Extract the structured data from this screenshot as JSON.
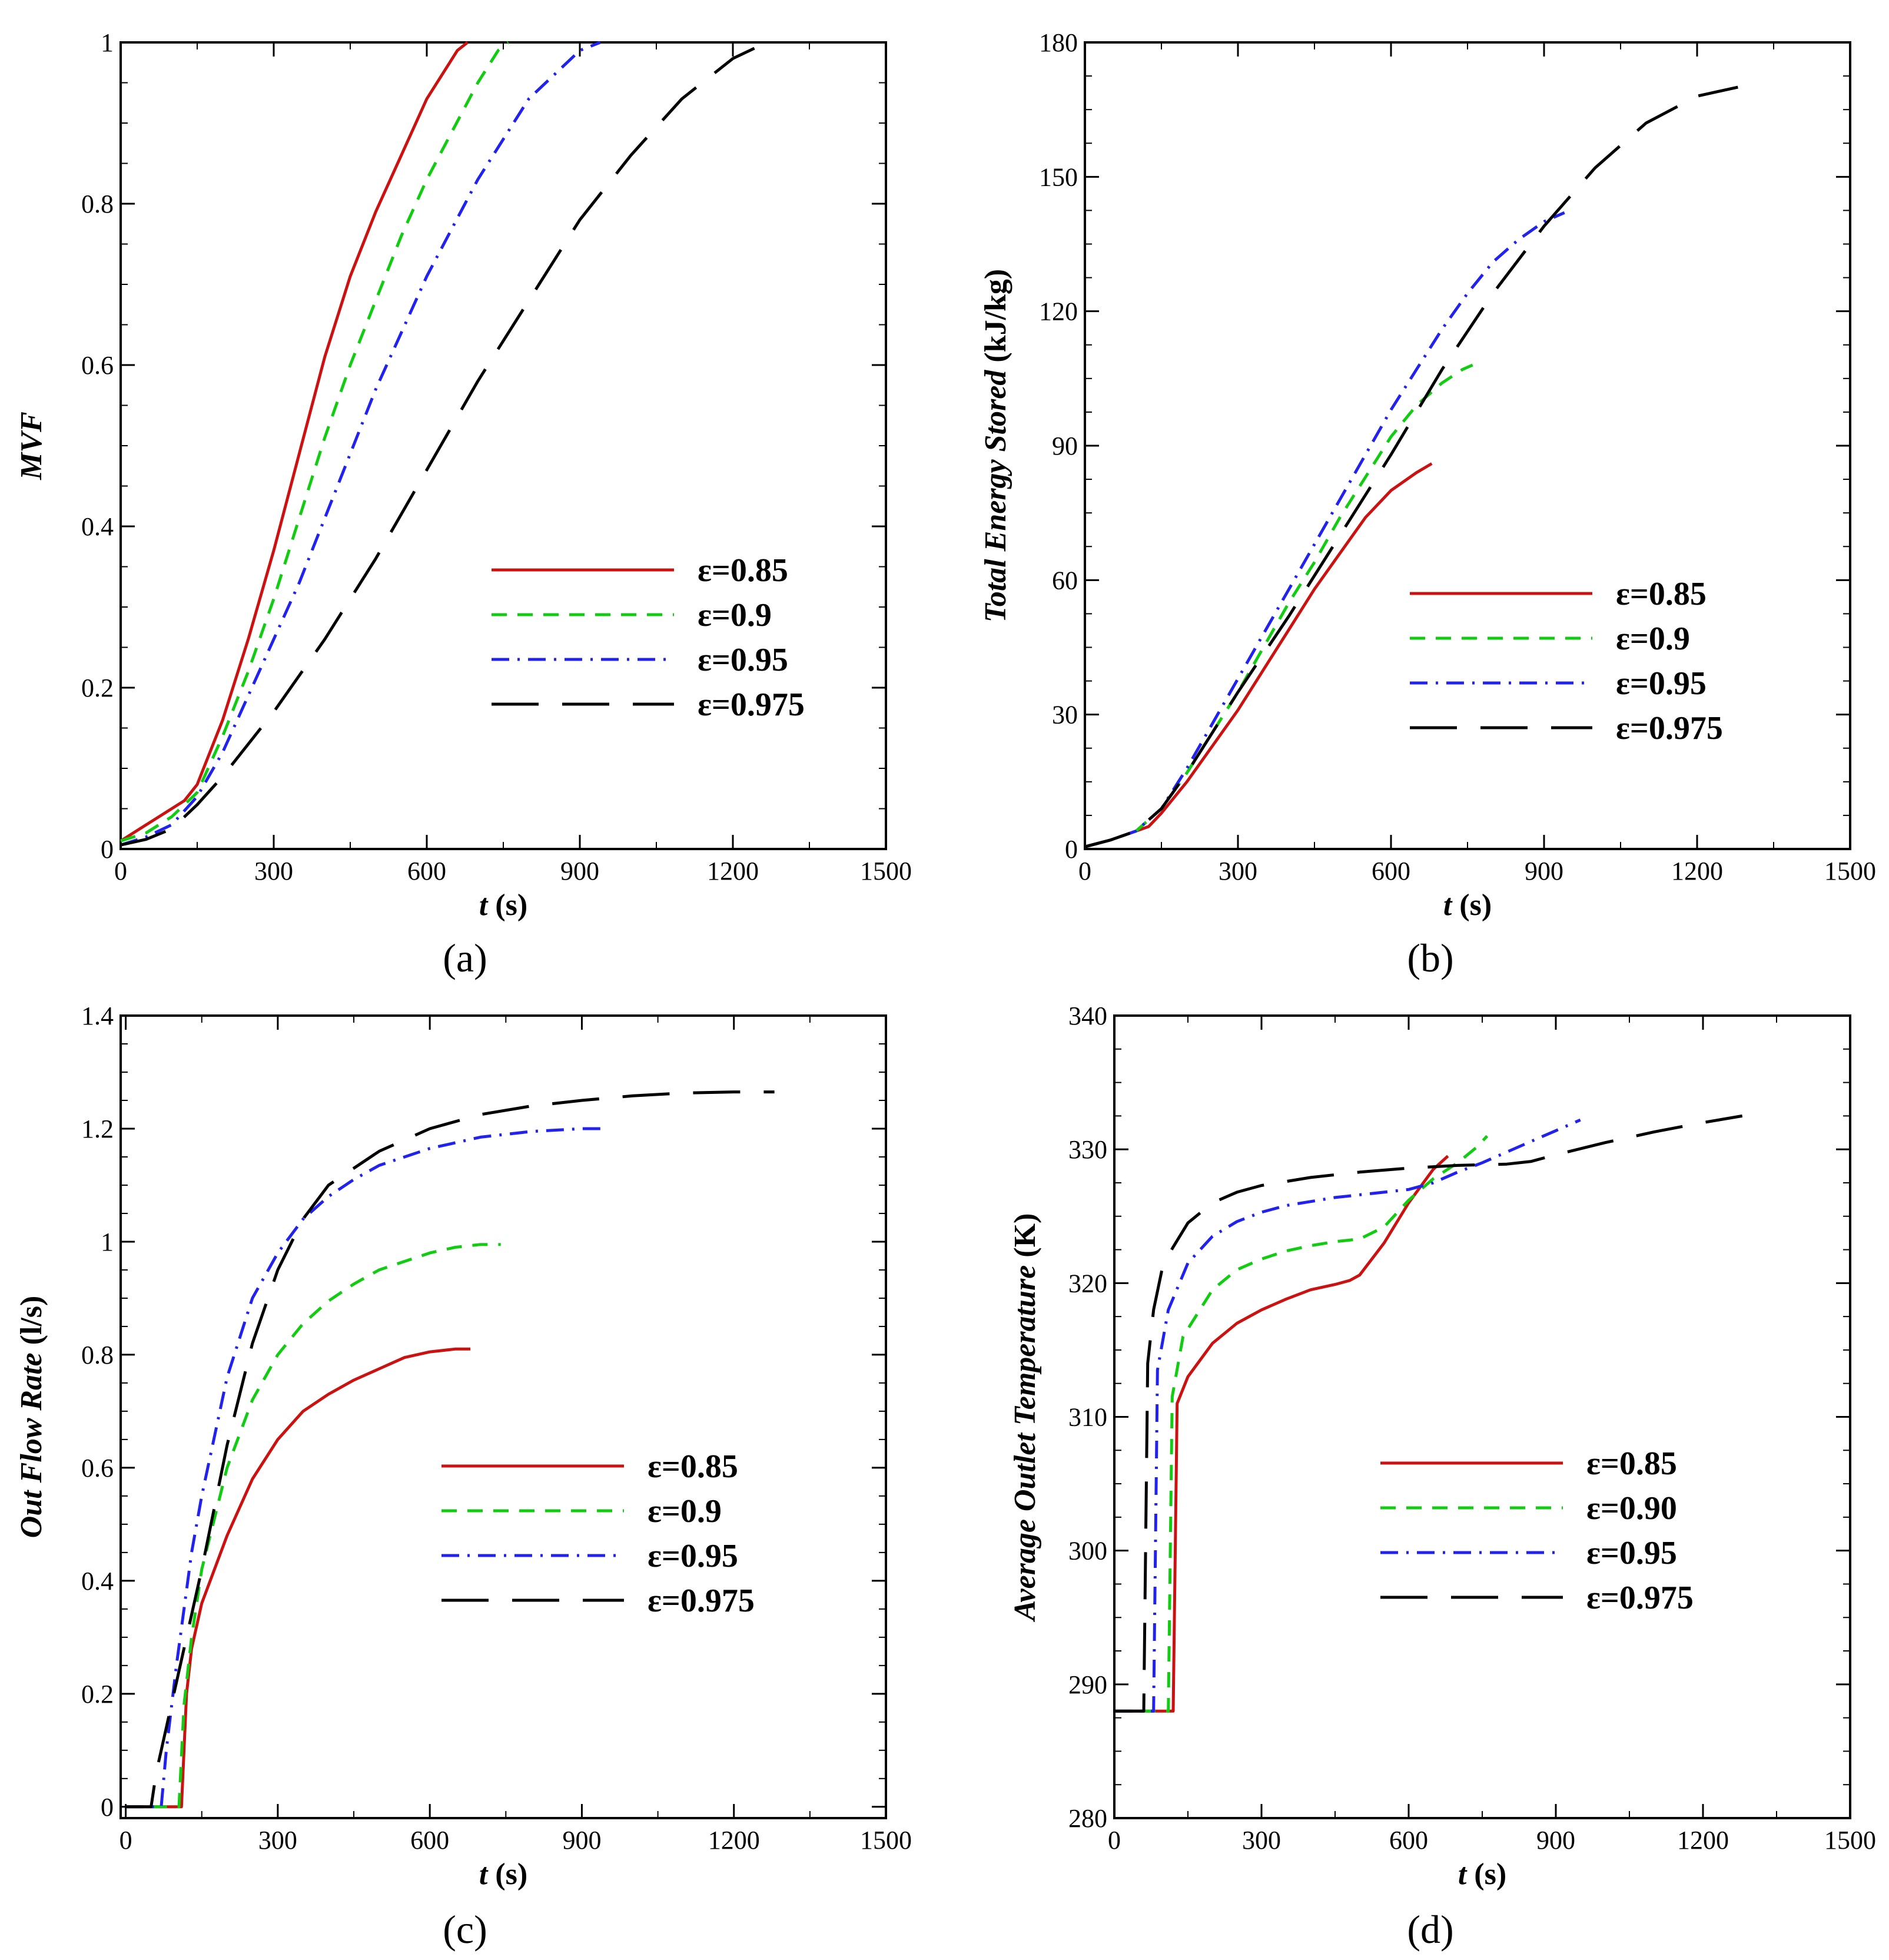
{
  "colors": {
    "red": "#cc1111",
    "green": "#11cc11",
    "blue": "#2222ee",
    "black": "#000000"
  },
  "chart_data": [
    {
      "type": "line",
      "caption": "(a)",
      "xlabel_var": "t",
      "xlabel_unit": " (s)",
      "ylabel": "MVF",
      "ylabel_unit": "",
      "xlim": [
        0,
        1500
      ],
      "ylim": [
        0,
        1
      ],
      "xticks": [
        0,
        300,
        600,
        900,
        1200,
        1500
      ],
      "yticks": [
        0,
        0.2,
        0.4,
        0.6,
        0.8,
        1
      ],
      "ytick_labels": [
        "0",
        "0.2",
        "0.4",
        "0.6",
        "0.8",
        "1"
      ],
      "legend_position": "lower-right",
      "series": [
        {
          "name": "ε=0.85",
          "style": "solid",
          "color": "#cc1111",
          "x": [
            0,
            50,
            100,
            125,
            150,
            200,
            250,
            300,
            350,
            400,
            420,
            450,
            500,
            550,
            600,
            640,
            660,
            680
          ],
          "y": [
            0.01,
            0.03,
            0.05,
            0.06,
            0.08,
            0.16,
            0.26,
            0.37,
            0.49,
            0.61,
            0.65,
            0.71,
            0.79,
            0.86,
            0.93,
            0.97,
            0.99,
            1.0
          ]
        },
        {
          "name": "ε=0.9",
          "style": "dashed",
          "color": "#11cc11",
          "x": [
            0,
            50,
            100,
            125,
            150,
            200,
            250,
            300,
            350,
            400,
            450,
            500,
            550,
            600,
            650,
            700,
            740,
            760
          ],
          "y": [
            0.01,
            0.02,
            0.04,
            0.055,
            0.07,
            0.14,
            0.22,
            0.31,
            0.41,
            0.51,
            0.6,
            0.68,
            0.76,
            0.83,
            0.89,
            0.95,
            0.99,
            1.0
          ]
        },
        {
          "name": "ε=0.95",
          "style": "dashdot",
          "color": "#2222ee",
          "x": [
            0,
            50,
            100,
            150,
            200,
            250,
            300,
            350,
            400,
            450,
            500,
            550,
            600,
            650,
            700,
            750,
            800,
            850,
            900,
            940
          ],
          "y": [
            0.005,
            0.015,
            0.03,
            0.065,
            0.12,
            0.19,
            0.26,
            0.33,
            0.41,
            0.49,
            0.57,
            0.64,
            0.71,
            0.77,
            0.83,
            0.88,
            0.93,
            0.96,
            0.99,
            1.0
          ]
        },
        {
          "name": "ε=0.975",
          "style": "longdash",
          "color": "#000000",
          "x": [
            0,
            50,
            100,
            150,
            200,
            300,
            400,
            500,
            600,
            700,
            800,
            900,
            1000,
            1100,
            1200,
            1250,
            1280
          ],
          "y": [
            0.005,
            0.012,
            0.025,
            0.055,
            0.09,
            0.17,
            0.26,
            0.36,
            0.47,
            0.58,
            0.68,
            0.78,
            0.86,
            0.93,
            0.98,
            0.995,
            1.0
          ]
        }
      ]
    },
    {
      "type": "line",
      "caption": "(b)",
      "xlabel_var": "t",
      "xlabel_unit": " (s)",
      "ylabel": "Total Energy Stored",
      "ylabel_unit": " (kJ/kg)",
      "xlim": [
        0,
        1500
      ],
      "ylim": [
        0,
        180
      ],
      "xticks": [
        0,
        300,
        600,
        900,
        1200,
        1500
      ],
      "yticks": [
        0,
        30,
        60,
        90,
        120,
        150,
        180
      ],
      "ytick_labels": [
        "0",
        "30",
        "60",
        "90",
        "120",
        "150",
        "180"
      ],
      "legend_position": "lower-right",
      "series": [
        {
          "name": "ε=0.85",
          "style": "solid",
          "color": "#cc1111",
          "x": [
            0,
            50,
            100,
            125,
            150,
            200,
            250,
            300,
            350,
            400,
            450,
            500,
            550,
            600,
            650,
            680
          ],
          "y": [
            0.5,
            2,
            4,
            5,
            8,
            15,
            23,
            31,
            40,
            49,
            58,
            66,
            74,
            80,
            84,
            86
          ]
        },
        {
          "name": "ε=0.9",
          "style": "dashed",
          "color": "#11cc11",
          "x": [
            0,
            50,
            100,
            150,
            200,
            250,
            300,
            350,
            400,
            450,
            500,
            550,
            600,
            650,
            700,
            740,
            760
          ],
          "y": [
            0.5,
            2,
            4,
            9,
            17,
            26,
            35,
            45,
            55,
            64,
            74,
            83,
            92,
            99,
            104,
            107,
            108
          ]
        },
        {
          "name": "ε=0.95",
          "style": "dashdot",
          "color": "#2222ee",
          "x": [
            0,
            50,
            100,
            150,
            200,
            250,
            300,
            350,
            400,
            450,
            500,
            550,
            600,
            650,
            700,
            750,
            800,
            850,
            900,
            940
          ],
          "y": [
            0.5,
            2,
            4,
            9,
            18,
            28,
            38,
            48,
            58,
            68,
            78,
            88,
            98,
            107,
            116,
            124,
            131,
            136,
            140,
            142
          ]
        },
        {
          "name": "ε=0.975",
          "style": "longdash",
          "color": "#000000",
          "x": [
            0,
            50,
            100,
            150,
            200,
            250,
            300,
            400,
            500,
            600,
            700,
            800,
            900,
            1000,
            1100,
            1200,
            1280
          ],
          "y": [
            0.5,
            2,
            4,
            9,
            17,
            26,
            35,
            52,
            70,
            88,
            107,
            124,
            139,
            152,
            162,
            168,
            170
          ]
        }
      ]
    },
    {
      "type": "line",
      "caption": "(c)",
      "xlabel_var": "t",
      "xlabel_unit": " (s)",
      "ylabel": "Out Flow Rate",
      "ylabel_unit": " (l/s)",
      "xlim": [
        -10,
        1500
      ],
      "ylim": [
        -0.02,
        1.4
      ],
      "xticks": [
        0,
        300,
        600,
        900,
        1200,
        1500
      ],
      "yticks": [
        0,
        0.2,
        0.4,
        0.6,
        0.8,
        1,
        1.2,
        1.4
      ],
      "ytick_labels": [
        "0",
        "0.2",
        "0.4",
        "0.6",
        "0.8",
        "1",
        "1.2",
        "1.4"
      ],
      "legend_position": "lower-right",
      "series": [
        {
          "name": "ε=0.85",
          "style": "solid",
          "color": "#cc1111",
          "x": [
            0,
            110,
            120,
            130,
            150,
            200,
            250,
            300,
            350,
            400,
            450,
            500,
            550,
            600,
            650,
            680
          ],
          "y": [
            0,
            0,
            0.2,
            0.28,
            0.36,
            0.48,
            0.58,
            0.65,
            0.7,
            0.73,
            0.755,
            0.775,
            0.795,
            0.805,
            0.81,
            0.81
          ]
        },
        {
          "name": "ε=0.9",
          "style": "dashed",
          "color": "#11cc11",
          "x": [
            0,
            105,
            115,
            130,
            150,
            200,
            250,
            300,
            350,
            400,
            450,
            500,
            550,
            600,
            650,
            700,
            740
          ],
          "y": [
            0,
            0,
            0.18,
            0.3,
            0.42,
            0.6,
            0.72,
            0.8,
            0.855,
            0.895,
            0.925,
            0.95,
            0.965,
            0.98,
            0.99,
            0.995,
            0.995
          ]
        },
        {
          "name": "ε=0.95",
          "style": "dashdot",
          "color": "#2222ee",
          "x": [
            0,
            70,
            80,
            100,
            130,
            150,
            200,
            250,
            300,
            350,
            400,
            450,
            500,
            600,
            700,
            800,
            900,
            950
          ],
          "y": [
            0,
            0,
            0.1,
            0.25,
            0.45,
            0.55,
            0.76,
            0.9,
            0.98,
            1.04,
            1.08,
            1.11,
            1.135,
            1.165,
            1.185,
            1.195,
            1.2,
            1.2
          ]
        },
        {
          "name": "ε=0.975",
          "style": "longdash",
          "color": "#000000",
          "x": [
            0,
            50,
            60,
            100,
            150,
            200,
            250,
            300,
            350,
            400,
            500,
            600,
            700,
            800,
            900,
            1000,
            1100,
            1200,
            1280
          ],
          "y": [
            0,
            0,
            0.06,
            0.22,
            0.42,
            0.64,
            0.82,
            0.95,
            1.04,
            1.1,
            1.16,
            1.2,
            1.225,
            1.24,
            1.25,
            1.258,
            1.263,
            1.265,
            1.265
          ]
        }
      ]
    },
    {
      "type": "line",
      "caption": "(d)",
      "xlabel_var": "t",
      "xlabel_unit": " (s)",
      "ylabel": "Average Outlet Temperature",
      "ylabel_unit": " (K)",
      "xlim": [
        0,
        1500
      ],
      "ylim": [
        280,
        340
      ],
      "xticks": [
        0,
        300,
        600,
        900,
        1200,
        1500
      ],
      "yticks": [
        280,
        290,
        300,
        310,
        320,
        330,
        340
      ],
      "ytick_labels": [
        "280",
        "290",
        "300",
        "310",
        "320",
        "330",
        "340"
      ],
      "legend_position": "lower-right",
      "series": [
        {
          "name": "ε=0.85",
          "style": "solid",
          "color": "#cc1111",
          "x": [
            0,
            120,
            128,
            150,
            200,
            250,
            300,
            350,
            400,
            450,
            480,
            500,
            550,
            600,
            650,
            680
          ],
          "y": [
            288,
            288,
            311,
            313,
            315.5,
            317,
            318,
            318.8,
            319.5,
            319.9,
            320.2,
            320.6,
            323,
            326,
            328.5,
            329.5
          ]
        },
        {
          "name": "ε=0.90",
          "style": "dashed",
          "color": "#11cc11",
          "x": [
            0,
            110,
            118,
            140,
            200,
            250,
            300,
            350,
            400,
            450,
            500,
            550,
            600,
            650,
            700,
            740,
            760
          ],
          "y": [
            288,
            288,
            311.5,
            316,
            319.5,
            321,
            321.8,
            322.4,
            322.8,
            323.1,
            323.3,
            324.2,
            326.2,
            327.8,
            329,
            330.2,
            331
          ]
        },
        {
          "name": "ε=0.95",
          "style": "dashdot",
          "color": "#2222ee",
          "x": [
            0,
            80,
            88,
            110,
            150,
            200,
            250,
            300,
            350,
            400,
            450,
            500,
            550,
            600,
            650,
            700,
            750,
            800,
            850,
            900,
            950
          ],
          "y": [
            288,
            288,
            313.5,
            318,
            321.5,
            323.5,
            324.6,
            325.3,
            325.8,
            326.1,
            326.4,
            326.6,
            326.8,
            327,
            327.5,
            328.3,
            329,
            329.8,
            330.6,
            331.4,
            332.2
          ]
        },
        {
          "name": "ε=0.975",
          "style": "longdash",
          "color": "#000000",
          "x": [
            0,
            60,
            68,
            80,
            100,
            150,
            200,
            250,
            300,
            400,
            500,
            600,
            700,
            800,
            850,
            900,
            1000,
            1100,
            1200,
            1280
          ],
          "y": [
            288,
            288,
            314,
            318,
            321.5,
            324.5,
            326,
            326.8,
            327.3,
            327.9,
            328.3,
            328.6,
            328.8,
            328.9,
            329.1,
            329.6,
            330.5,
            331.3,
            332,
            332.5
          ]
        }
      ]
    }
  ]
}
